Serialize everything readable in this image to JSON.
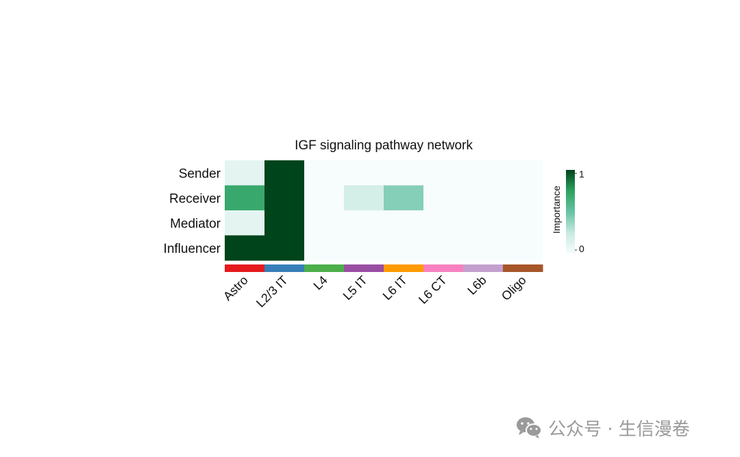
{
  "chart_data": {
    "type": "heatmap",
    "title": "IGF signaling pathway network",
    "rows": [
      "Sender",
      "Receiver",
      "Mediator",
      "Influencer"
    ],
    "columns": [
      "Astro",
      "L2/3 IT",
      "L4",
      "L5 IT",
      "L6 IT",
      "L6 CT",
      "L6b",
      "Oligo"
    ],
    "values": [
      [
        0.1,
        1.0,
        0,
        0,
        0,
        0,
        0,
        0
      ],
      [
        0.7,
        1.0,
        0,
        0.18,
        0.42,
        0,
        0,
        0
      ],
      [
        0.1,
        1.0,
        0,
        0,
        0,
        0,
        0,
        0
      ],
      [
        1.0,
        1.0,
        0,
        0,
        0,
        0,
        0,
        0
      ]
    ],
    "column_colors": [
      "#e41a1c",
      "#377eb8",
      "#4daf4a",
      "#984ea3",
      "#ff9a00",
      "#f781bf",
      "#c4a0cf",
      "#a65628"
    ],
    "colorbar": {
      "title": "Importance",
      "min_label": "0",
      "max_label": "1",
      "range": [
        0,
        1
      ],
      "colors": [
        "#f7fcfd",
        "#c7e9e0",
        "#66c2a4",
        "#2ca25f",
        "#00441b"
      ]
    }
  },
  "watermark": {
    "text": "公众号 · 生信漫卷",
    "icon": "wechat-icon"
  }
}
